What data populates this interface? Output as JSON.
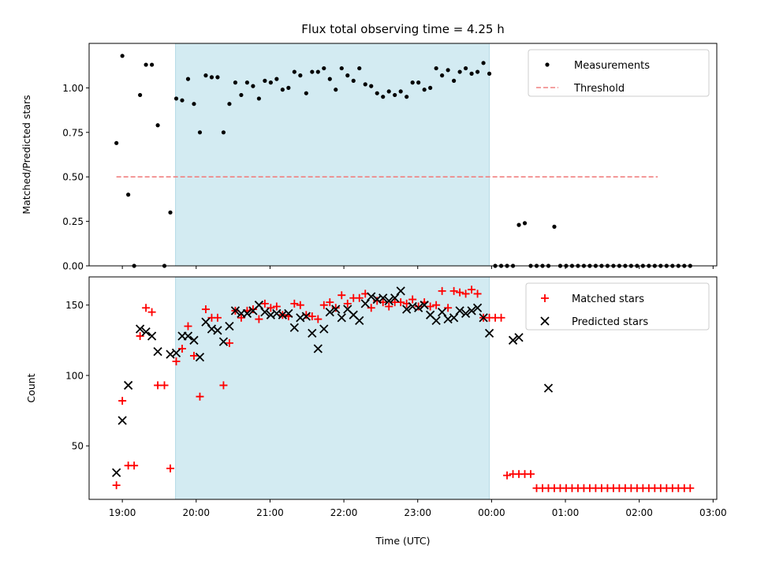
{
  "chart_data": [
    {
      "type": "scatter",
      "title": "Flux total observing time = 4.25 h",
      "ylabel": "Matched/Predicted stars",
      "xlabel": "",
      "x_unit": "hours since 19:00 UTC",
      "xlim": [
        -0.45,
        8.05
      ],
      "ylim": [
        0,
        1.25
      ],
      "yticks": [
        0.0,
        0.25,
        0.5,
        0.75,
        1.0
      ],
      "ytick_labels": [
        "0.00",
        "0.25",
        "0.50",
        "0.75",
        "1.00"
      ],
      "highlight_span": [
        0.72,
        4.97
      ],
      "highlight_color": "#d3ebf2",
      "legend": [
        "Measurements",
        "Threshold"
      ],
      "legend_position": "top-right",
      "series": [
        {
          "name": "Measurements",
          "marker": "dot",
          "color": "#000000",
          "x": [
            -0.08,
            0.0,
            0.08,
            0.16,
            0.24,
            0.32,
            0.4,
            0.48,
            0.57,
            0.65,
            0.73,
            0.81,
            0.89,
            0.97,
            1.05,
            1.13,
            1.21,
            1.29,
            1.37,
            1.45,
            1.53,
            1.61,
            1.69,
            1.77,
            1.85,
            1.93,
            2.01,
            2.09,
            2.17,
            2.25,
            2.33,
            2.41,
            2.49,
            2.57,
            2.65,
            2.73,
            2.81,
            2.89,
            2.97,
            3.05,
            3.13,
            3.21,
            3.29,
            3.37,
            3.45,
            3.53,
            3.61,
            3.69,
            3.77,
            3.85,
            3.93,
            4.01,
            4.09,
            4.17,
            4.25,
            4.33,
            4.41,
            4.49,
            4.57,
            4.65,
            4.73,
            4.81,
            4.89,
            4.97,
            5.05,
            5.13,
            5.21,
            5.29,
            5.37,
            5.45,
            5.53,
            5.61,
            5.69,
            5.77,
            5.85,
            5.93,
            6.01,
            6.09,
            6.17,
            6.25,
            6.33,
            6.41,
            6.49,
            6.57,
            6.65,
            6.73,
            6.81,
            6.89,
            6.97,
            7.05,
            7.13,
            7.21,
            7.29,
            7.37,
            7.45,
            7.53,
            7.61,
            7.69
          ],
          "y": [
            0.69,
            1.18,
            0.4,
            0.0,
            0.96,
            1.13,
            1.13,
            0.79,
            0.0,
            0.3,
            0.94,
            0.93,
            1.05,
            0.91,
            0.75,
            1.07,
            1.06,
            1.06,
            0.75,
            0.91,
            1.03,
            0.96,
            1.03,
            1.01,
            0.94,
            1.04,
            1.03,
            1.05,
            0.99,
            1.0,
            1.09,
            1.07,
            0.97,
            1.09,
            1.09,
            1.11,
            1.05,
            0.99,
            1.11,
            1.07,
            1.04,
            1.11,
            1.02,
            1.01,
            0.97,
            0.95,
            0.98,
            0.96,
            0.98,
            0.95,
            1.03,
            1.03,
            0.99,
            1.0,
            1.11,
            1.07,
            1.1,
            1.04,
            1.09,
            1.11,
            1.08,
            1.09,
            1.14,
            1.08,
            0.0,
            0.0,
            0.0,
            0.0,
            0.23,
            0.24,
            0.0,
            0.0,
            0.0,
            0.0,
            0.22,
            0.0,
            0.0,
            0.0,
            0.0,
            0.0,
            0.0,
            0.0,
            0.0,
            0.0,
            0.0,
            0.0,
            0.0,
            0.0,
            0.0,
            0.0,
            0.0,
            0.0,
            0.0,
            0.0,
            0.0,
            0.0,
            0.0,
            0.0
          ]
        },
        {
          "name": "Threshold",
          "marker": "dashed-line",
          "color": "#f08080",
          "x": [
            -0.08,
            7.25
          ],
          "y": [
            0.5,
            0.5
          ]
        }
      ]
    },
    {
      "type": "scatter",
      "title": "",
      "ylabel": "Count",
      "xlabel": "Time (UTC)",
      "x_unit": "hours since 19:00 UTC",
      "xlim": [
        -0.45,
        8.05
      ],
      "ylim": [
        12,
        170
      ],
      "yticks": [
        50,
        100,
        150
      ],
      "ytick_labels": [
        "50",
        "100",
        "150"
      ],
      "xticks": [
        0,
        1,
        2,
        3,
        4,
        5,
        6,
        7,
        8
      ],
      "xtick_labels": [
        "19:00",
        "20:00",
        "21:00",
        "22:00",
        "23:00",
        "00:00",
        "01:00",
        "02:00",
        "03:00"
      ],
      "highlight_span": [
        0.72,
        4.97
      ],
      "highlight_color": "#d3ebf2",
      "legend": [
        "Matched stars",
        "Predicted stars"
      ],
      "legend_position": "top-right",
      "series": [
        {
          "name": "Matched stars",
          "marker": "plus",
          "color": "#ff0000",
          "x": [
            -0.08,
            0.0,
            0.08,
            0.16,
            0.24,
            0.32,
            0.4,
            0.48,
            0.57,
            0.65,
            0.73,
            0.81,
            0.89,
            0.97,
            1.05,
            1.13,
            1.21,
            1.29,
            1.37,
            1.45,
            1.53,
            1.61,
            1.69,
            1.77,
            1.85,
            1.93,
            2.01,
            2.09,
            2.17,
            2.25,
            2.33,
            2.41,
            2.49,
            2.57,
            2.65,
            2.73,
            2.81,
            2.89,
            2.97,
            3.05,
            3.13,
            3.21,
            3.29,
            3.37,
            3.45,
            3.53,
            3.61,
            3.69,
            3.77,
            3.85,
            3.93,
            4.01,
            4.09,
            4.17,
            4.25,
            4.33,
            4.41,
            4.49,
            4.57,
            4.65,
            4.73,
            4.81,
            4.89,
            4.97,
            5.05,
            5.13,
            5.21,
            5.29,
            5.37,
            5.45,
            5.53,
            5.61,
            5.69,
            5.77,
            5.85,
            5.93,
            6.01,
            6.09,
            6.17,
            6.25,
            6.33,
            6.41,
            6.49,
            6.57,
            6.65,
            6.73,
            6.81,
            6.89,
            6.97,
            7.05,
            7.13,
            7.21,
            7.29,
            7.37,
            7.45,
            7.53,
            7.61,
            7.69
          ],
          "y": [
            22,
            82,
            36,
            36,
            128,
            148,
            145,
            93,
            93,
            34,
            110,
            119,
            135,
            114,
            85,
            147,
            141,
            141,
            93,
            123,
            146,
            141,
            146,
            147,
            140,
            151,
            148,
            149,
            143,
            142,
            151,
            150,
            143,
            142,
            140,
            150,
            152,
            148,
            157,
            151,
            155,
            155,
            158,
            148,
            153,
            152,
            149,
            152,
            152,
            151,
            154,
            149,
            152,
            149,
            150,
            160,
            148,
            160,
            159,
            158,
            161,
            158,
            141,
            141,
            141,
            141,
            29,
            30,
            30,
            30,
            30,
            20,
            20,
            20,
            20,
            20,
            20,
            20,
            20,
            20,
            20,
            20,
            20,
            20,
            20,
            20,
            20,
            20,
            20,
            20,
            20,
            20,
            20,
            20,
            20,
            20,
            20,
            20
          ]
        },
        {
          "name": "Predicted stars",
          "marker": "x",
          "color": "#000000",
          "x": [
            -0.08,
            0.0,
            0.08,
            0.24,
            0.32,
            0.4,
            0.48,
            0.65,
            0.73,
            0.81,
            0.89,
            0.97,
            1.05,
            1.13,
            1.21,
            1.29,
            1.37,
            1.45,
            1.53,
            1.61,
            1.69,
            1.77,
            1.85,
            1.93,
            2.01,
            2.09,
            2.17,
            2.25,
            2.33,
            2.41,
            2.49,
            2.57,
            2.65,
            2.73,
            2.81,
            2.89,
            2.97,
            3.05,
            3.13,
            3.21,
            3.29,
            3.37,
            3.45,
            3.53,
            3.61,
            3.69,
            3.77,
            3.85,
            3.93,
            4.01,
            4.09,
            4.17,
            4.25,
            4.33,
            4.41,
            4.49,
            4.57,
            4.65,
            4.73,
            4.81,
            4.89,
            4.97,
            5.29,
            5.37,
            5.77
          ],
          "y": [
            31,
            68,
            93,
            133,
            131,
            128,
            117,
            115,
            116,
            128,
            128,
            125,
            113,
            138,
            133,
            132,
            124,
            135,
            146,
            144,
            144,
            146,
            150,
            145,
            143,
            144,
            143,
            144,
            134,
            141,
            142,
            130,
            119,
            133,
            145,
            147,
            141,
            147,
            143,
            139,
            151,
            156,
            154,
            155,
            153,
            155,
            160,
            147,
            149,
            148,
            150,
            143,
            139,
            145,
            140,
            141,
            146,
            144,
            146,
            148,
            141,
            130,
            125,
            127,
            91
          ]
        }
      ]
    }
  ]
}
